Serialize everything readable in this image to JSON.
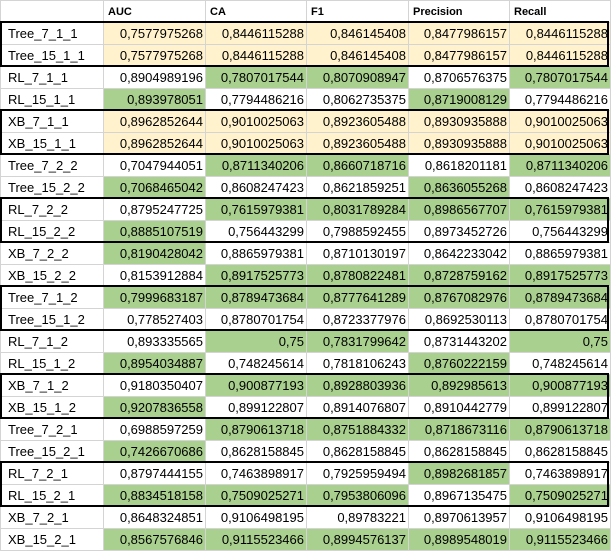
{
  "table": {
    "headers": [
      "",
      "AUC",
      "CA",
      "F1",
      "Precision",
      "Recall"
    ],
    "rows": [
      {
        "label": "Tree_7_1_1",
        "values": [
          "0,7577975268",
          "0,8446115288",
          "0,846145408",
          "0,8477986157",
          "0,8446115288"
        ],
        "fills": [
          "y",
          "y",
          "y",
          "y",
          "y"
        ]
      },
      {
        "label": "Tree_15_1_1",
        "values": [
          "0,7577975268",
          "0,8446115288",
          "0,846145408",
          "0,8477986157",
          "0,8446115288"
        ],
        "fills": [
          "y",
          "y",
          "y",
          "y",
          "y"
        ]
      },
      {
        "label": "RL_7_1_1",
        "values": [
          "0,8904989196",
          "0,7807017544",
          "0,8070908947",
          "0,8706576375",
          "0,7807017544"
        ],
        "fills": [
          "",
          "g",
          "g",
          "",
          "g"
        ]
      },
      {
        "label": "RL_15_1_1",
        "values": [
          "0,893978051",
          "0,7794486216",
          "0,8062735375",
          "0,8719008129",
          "0,7794486216"
        ],
        "fills": [
          "g",
          "",
          "",
          "g",
          ""
        ]
      },
      {
        "label": "XB_7_1_1",
        "values": [
          "0,8962852644",
          "0,9010025063",
          "0,8923605488",
          "0,8930935888",
          "0,9010025063"
        ],
        "fills": [
          "y",
          "y",
          "y",
          "y",
          "y"
        ]
      },
      {
        "label": "XB_15_1_1",
        "values": [
          "0,8962852644",
          "0,9010025063",
          "0,8923605488",
          "0,8930935888",
          "0,9010025063"
        ],
        "fills": [
          "y",
          "y",
          "y",
          "y",
          "y"
        ]
      },
      {
        "label": "Tree_7_2_2",
        "values": [
          "0,7047944051",
          "0,8711340206",
          "0,8660718716",
          "0,8618201181",
          "0,8711340206"
        ],
        "fills": [
          "",
          "g",
          "g",
          "",
          "g"
        ]
      },
      {
        "label": "Tree_15_2_2",
        "values": [
          "0,7068465042",
          "0,8608247423",
          "0,8621859251",
          "0,8636055268",
          "0,8608247423"
        ],
        "fills": [
          "g",
          "",
          "",
          "g",
          ""
        ]
      },
      {
        "label": "RL_7_2_2",
        "values": [
          "0,8795247725",
          "0,7615979381",
          "0,8031789284",
          "0,8986567707",
          "0,7615979381"
        ],
        "fills": [
          "",
          "g",
          "g",
          "g",
          "g"
        ]
      },
      {
        "label": "RL_15_2_2",
        "values": [
          "0,8885107519",
          "0,756443299",
          "0,7988592455",
          "0,8973452726",
          "0,756443299"
        ],
        "fills": [
          "g",
          "",
          "",
          "",
          ""
        ]
      },
      {
        "label": "XB_7_2_2",
        "values": [
          "0,8190428042",
          "0,8865979381",
          "0,8710130197",
          "0,8642233042",
          "0,8865979381"
        ],
        "fills": [
          "g",
          "",
          "",
          "",
          ""
        ]
      },
      {
        "label": "XB_15_2_2",
        "values": [
          "0,8153912884",
          "0,8917525773",
          "0,8780822481",
          "0,8728759162",
          "0,8917525773"
        ],
        "fills": [
          "",
          "g",
          "g",
          "g",
          "g"
        ]
      },
      {
        "label": "Tree_7_1_2",
        "values": [
          "0,7999683187",
          "0,8789473684",
          "0,8777641289",
          "0,8767082976",
          "0,8789473684"
        ],
        "fills": [
          "g",
          "g",
          "g",
          "g",
          "g"
        ]
      },
      {
        "label": "Tree_15_1_2",
        "values": [
          "0,778527403",
          "0,8780701754",
          "0,8723377976",
          "0,8692530113",
          "0,8780701754"
        ],
        "fills": [
          "",
          "",
          "",
          "",
          ""
        ]
      },
      {
        "label": "RL_7_1_2",
        "values": [
          "0,893335565",
          "0,75",
          "0,7831799642",
          "0,8731443202",
          "0,75"
        ],
        "fills": [
          "",
          "g",
          "g",
          "",
          "g"
        ]
      },
      {
        "label": "RL_15_1_2",
        "values": [
          "0,8954034887",
          "0,748245614",
          "0,7818106243",
          "0,8760222159",
          "0,748245614"
        ],
        "fills": [
          "g",
          "",
          "",
          "g",
          ""
        ]
      },
      {
        "label": "XB_7_1_2",
        "values": [
          "0,9180350407",
          "0,900877193",
          "0,8928803936",
          "0,892985613",
          "0,900877193"
        ],
        "fills": [
          "",
          "g",
          "g",
          "g",
          "g"
        ]
      },
      {
        "label": "XB_15_1_2",
        "values": [
          "0,9207836558",
          "0,899122807",
          "0,8914076807",
          "0,8910442779",
          "0,899122807"
        ],
        "fills": [
          "g",
          "",
          "",
          "",
          ""
        ]
      },
      {
        "label": "Tree_7_2_1",
        "values": [
          "0,6988597259",
          "0,8790613718",
          "0,8751884332",
          "0,8718673116",
          "0,8790613718"
        ],
        "fills": [
          "",
          "g",
          "g",
          "g",
          "g"
        ]
      },
      {
        "label": "Tree_15_2_1",
        "values": [
          "0,7426670686",
          "0,8628158845",
          "0,8628158845",
          "0,8628158845",
          "0,8628158845"
        ],
        "fills": [
          "g",
          "",
          "",
          "",
          ""
        ]
      },
      {
        "label": "RL_7_2_1",
        "values": [
          "0,8797444155",
          "0,7463898917",
          "0,7925959494",
          "0,8982681857",
          "0,7463898917"
        ],
        "fills": [
          "",
          "",
          "",
          "g",
          ""
        ]
      },
      {
        "label": "RL_15_2_1",
        "values": [
          "0,8834518158",
          "0,7509025271",
          "0,7953806096",
          "0,8967135475",
          "0,7509025271"
        ],
        "fills": [
          "g",
          "g",
          "g",
          "",
          "g"
        ]
      },
      {
        "label": "XB_7_2_1",
        "values": [
          "0,8648324851",
          "0,9106498195",
          "0,89783221",
          "0,8970613957",
          "0,9106498195"
        ],
        "fills": [
          "",
          "",
          "",
          "",
          ""
        ]
      },
      {
        "label": "XB_15_2_1",
        "values": [
          "0,8567576846",
          "0,9115523466",
          "0,8994576137",
          "0,8989548019",
          "0,9115523466"
        ],
        "fills": [
          "g",
          "g",
          "g",
          "g",
          "g"
        ]
      }
    ]
  },
  "colors": {
    "yellow_fill": "#fff2cc",
    "green_fill": "#a9d08e",
    "box_border": "#000000",
    "grid": "#d4d4d4"
  }
}
